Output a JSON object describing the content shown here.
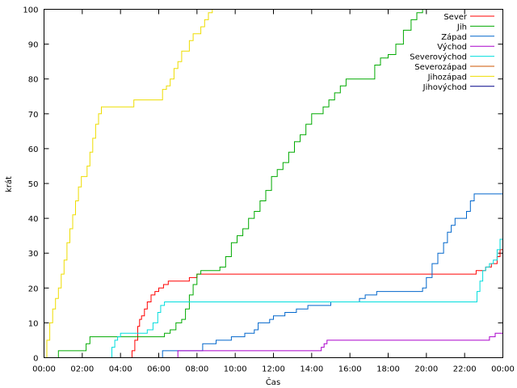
{
  "chart_data": {
    "type": "line",
    "title": "",
    "xlabel": "Čas",
    "ylabel": "krát",
    "xlim": [
      0,
      24
    ],
    "ylim": [
      0,
      100
    ],
    "grid": false,
    "legend_position": "top-right",
    "x_unit": "hours",
    "x_ticks": [
      {
        "value": 0,
        "label": "00:00"
      },
      {
        "value": 2,
        "label": "02:00"
      },
      {
        "value": 4,
        "label": "04:00"
      },
      {
        "value": 6,
        "label": "06:00"
      },
      {
        "value": 8,
        "label": "08:00"
      },
      {
        "value": 10,
        "label": "10:00"
      },
      {
        "value": 12,
        "label": "12:00"
      },
      {
        "value": 14,
        "label": "14:00"
      },
      {
        "value": 16,
        "label": "16:00"
      },
      {
        "value": 18,
        "label": "18:00"
      },
      {
        "value": 20,
        "label": "20:00"
      },
      {
        "value": 22,
        "label": "22:00"
      },
      {
        "value": 24,
        "label": "00:00"
      }
    ],
    "y_ticks": [
      {
        "value": 0,
        "label": "0"
      },
      {
        "value": 10,
        "label": "10"
      },
      {
        "value": 20,
        "label": "20"
      },
      {
        "value": 30,
        "label": "30"
      },
      {
        "value": 40,
        "label": "40"
      },
      {
        "value": 50,
        "label": "50"
      },
      {
        "value": 60,
        "label": "60"
      },
      {
        "value": 70,
        "label": "70"
      },
      {
        "value": 80,
        "label": "80"
      },
      {
        "value": 90,
        "label": "90"
      },
      {
        "value": 100,
        "label": "100"
      }
    ],
    "series": [
      {
        "name": "Sever",
        "color": "#ff0000",
        "x": [
          4.45,
          4.6,
          4.75,
          4.9,
          5.0,
          5.1,
          5.25,
          5.4,
          5.6,
          5.8,
          6.0,
          6.25,
          6.5,
          7.0,
          7.6,
          8.0,
          10.0,
          14.0,
          18.0,
          21.0,
          22.4,
          22.6,
          22.85,
          23.1,
          23.4,
          23.55,
          23.7,
          23.85,
          24.0
        ],
        "y": [
          0,
          2,
          5,
          9,
          11,
          12,
          14,
          16,
          18,
          19,
          20,
          21,
          22,
          22,
          23,
          24,
          24,
          24,
          24,
          24,
          24,
          25,
          25,
          26,
          27,
          27,
          29,
          31,
          31
        ]
      },
      {
        "name": "Jih",
        "color": "#00aa00",
        "x": [
          0.6,
          0.75,
          1.0,
          1.5,
          2.2,
          2.4,
          2.8,
          3.5,
          4.2,
          5.0,
          6.0,
          6.3,
          6.6,
          6.9,
          7.2,
          7.4,
          7.6,
          7.8,
          8.0,
          8.2,
          8.5,
          9.0,
          9.2,
          9.5,
          9.8,
          10.1,
          10.4,
          10.7,
          11.0,
          11.3,
          11.6,
          11.9,
          12.2,
          12.5,
          12.8,
          13.1,
          13.4,
          13.7,
          14.0,
          14.3,
          14.6,
          14.9,
          15.2,
          15.5,
          15.8,
          16.1,
          16.4,
          16.7,
          17.0,
          17.3,
          17.6,
          18.0,
          18.4,
          18.8,
          19.2,
          19.5,
          19.8
        ],
        "y": [
          0,
          2,
          2,
          2,
          4,
          6,
          6,
          6,
          6,
          6,
          6,
          7,
          8,
          10,
          11,
          14,
          18,
          21,
          24,
          25,
          25,
          25,
          26,
          29,
          33,
          35,
          37,
          40,
          42,
          45,
          48,
          52,
          54,
          56,
          59,
          62,
          64,
          67,
          70,
          70,
          72,
          74,
          76,
          78,
          80,
          80,
          80,
          80,
          80,
          84,
          86,
          87,
          90,
          94,
          97,
          99,
          100
        ]
      },
      {
        "name": "Západ",
        "color": "#0066cc",
        "x": [
          6.0,
          6.2,
          6.5,
          7.0,
          7.8,
          8.3,
          9.0,
          9.8,
          10.5,
          11.0,
          11.2,
          11.5,
          11.8,
          12.0,
          12.3,
          12.6,
          12.9,
          13.2,
          13.5,
          13.8,
          14.0,
          14.5,
          15.0,
          15.5,
          16.0,
          16.5,
          16.8,
          17.1,
          17.4,
          17.7,
          18.0,
          18.5,
          18.8,
          19.0,
          19.3,
          19.6,
          19.8,
          20.0,
          20.3,
          20.6,
          20.9,
          21.1,
          21.3,
          21.5,
          21.7,
          21.9,
          22.1,
          22.3,
          22.5,
          22.7,
          23.0,
          23.5,
          24.0
        ],
        "y": [
          0,
          2,
          2,
          2,
          2,
          4,
          5,
          6,
          7,
          8,
          10,
          10,
          11,
          12,
          12,
          13,
          13,
          14,
          14,
          15,
          15,
          15,
          16,
          16,
          16,
          17,
          18,
          18,
          19,
          19,
          19,
          19,
          19,
          19,
          19,
          19,
          20,
          23,
          27,
          30,
          33,
          36,
          38,
          40,
          40,
          40,
          42,
          45,
          47,
          47,
          47,
          47,
          47
        ]
      },
      {
        "name": "Východ",
        "color": "#aa00cc",
        "x": [
          6.85,
          7.0,
          8.0,
          10.0,
          12.0,
          14.0,
          14.5,
          14.65,
          14.8,
          15.0,
          16.0,
          18.0,
          20.0,
          22.0,
          23.0,
          23.3,
          23.5,
          23.6,
          23.8,
          24.0
        ],
        "y": [
          0,
          2,
          2,
          2,
          2,
          2,
          3,
          4,
          5,
          5,
          5,
          5,
          5,
          5,
          5,
          6,
          6,
          7,
          7,
          7
        ]
      },
      {
        "name": "Severovýchod",
        "color": "#00dddd",
        "x": [
          3.45,
          3.55,
          3.7,
          3.85,
          4.0,
          4.5,
          5.0,
          5.4,
          5.7,
          5.95,
          6.1,
          6.3,
          7.0,
          8.0,
          10.0,
          12.0,
          14.0,
          16.0,
          18.0,
          20.0,
          22.0,
          22.5,
          22.65,
          22.8,
          22.95,
          23.1,
          23.3,
          23.5,
          23.7,
          23.85,
          24.0
        ],
        "y": [
          0,
          3,
          5,
          6,
          7,
          7,
          7,
          8,
          10,
          13,
          15,
          16,
          16,
          16,
          16,
          16,
          16,
          16,
          16,
          16,
          16,
          16,
          19,
          22,
          25,
          26,
          27,
          28,
          31,
          34,
          38
        ]
      },
      {
        "name": "Severozápad",
        "color": "#cc5500",
        "x": [],
        "y": []
      },
      {
        "name": "Jihozápad",
        "color": "#eedd00",
        "x": [
          0.0,
          0.15,
          0.3,
          0.45,
          0.6,
          0.75,
          0.9,
          1.05,
          1.2,
          1.35,
          1.5,
          1.65,
          1.8,
          1.95,
          2.1,
          2.25,
          2.4,
          2.55,
          2.7,
          2.85,
          3.0,
          3.15,
          3.3,
          3.5,
          4.0,
          4.5,
          4.7,
          5.0,
          5.5,
          6.0,
          6.2,
          6.4,
          6.6,
          6.8,
          7.0,
          7.2,
          7.4,
          7.6,
          7.8,
          8.0,
          8.2,
          8.4,
          8.6,
          8.8
        ],
        "y": [
          0,
          5,
          10,
          14,
          17,
          20,
          24,
          28,
          33,
          37,
          41,
          45,
          49,
          52,
          52,
          55,
          59,
          63,
          67,
          70,
          72,
          72,
          72,
          72,
          72,
          72,
          74,
          74,
          74,
          74,
          77,
          78,
          80,
          83,
          85,
          88,
          88,
          91,
          93,
          93,
          95,
          97,
          99,
          100
        ]
      },
      {
        "name": "Jihovýchod",
        "color": "#000088",
        "x": [],
        "y": []
      }
    ]
  }
}
